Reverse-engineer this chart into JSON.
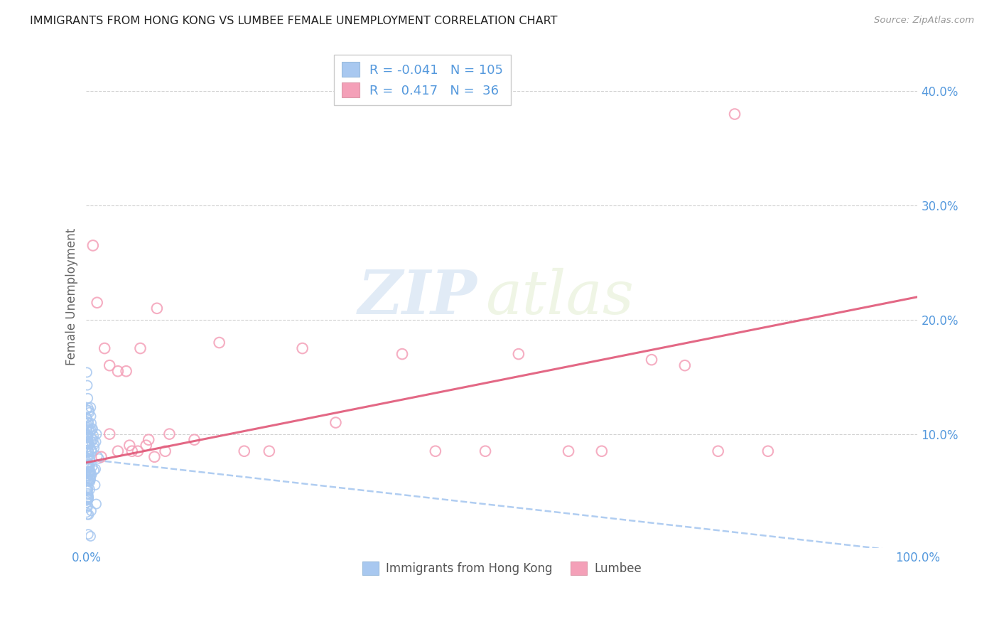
{
  "title": "IMMIGRANTS FROM HONG KONG VS LUMBEE FEMALE UNEMPLOYMENT CORRELATION CHART",
  "source": "Source: ZipAtlas.com",
  "ylabel": "Female Unemployment",
  "watermark_zip": "ZIP",
  "watermark_atlas": "atlas",
  "legend_hk": {
    "R": -0.041,
    "N": 105,
    "label": "Immigrants from Hong Kong"
  },
  "legend_lumbee": {
    "R": 0.417,
    "N": 36,
    "label": "Lumbee"
  },
  "hk_color": "#A8C8F0",
  "lumbee_color": "#F4A0B8",
  "hk_line_color": "#A8C8F0",
  "lumbee_line_color": "#E05878",
  "xlim": [
    0,
    1.0
  ],
  "ylim": [
    0,
    0.44
  ],
  "x_tick_positions": [
    0.0,
    0.5,
    1.0
  ],
  "x_tick_labels": [
    "0.0%",
    "",
    "100.0%"
  ],
  "y_tick_positions": [
    0.1,
    0.2,
    0.3,
    0.4
  ],
  "y_tick_labels": [
    "10.0%",
    "20.0%",
    "30.0%",
    "40.0%"
  ],
  "hk_intercept": 0.078,
  "hk_slope": -0.082,
  "lum_intercept": 0.075,
  "lum_slope": 0.145,
  "background_color": "#FFFFFF",
  "grid_color": "#CCCCCC",
  "title_color": "#222222",
  "axis_label_color": "#666666",
  "tick_label_color": "#5599DD",
  "source_color": "#999999",
  "lumbee_points_x": [
    0.008,
    0.013,
    0.022,
    0.028,
    0.038,
    0.048,
    0.055,
    0.065,
    0.075,
    0.085,
    0.095,
    0.1,
    0.13,
    0.16,
    0.19,
    0.22,
    0.26,
    0.3,
    0.38,
    0.42,
    0.48,
    0.52,
    0.58,
    0.62,
    0.68,
    0.72,
    0.76,
    0.82,
    0.018,
    0.028,
    0.038,
    0.052,
    0.062,
    0.072,
    0.082,
    0.78
  ],
  "lumbee_points_y": [
    0.265,
    0.215,
    0.175,
    0.16,
    0.155,
    0.155,
    0.085,
    0.175,
    0.095,
    0.21,
    0.085,
    0.1,
    0.095,
    0.18,
    0.085,
    0.085,
    0.175,
    0.11,
    0.17,
    0.085,
    0.085,
    0.17,
    0.085,
    0.085,
    0.165,
    0.16,
    0.085,
    0.085,
    0.08,
    0.1,
    0.085,
    0.09,
    0.085,
    0.09,
    0.08,
    0.38
  ]
}
